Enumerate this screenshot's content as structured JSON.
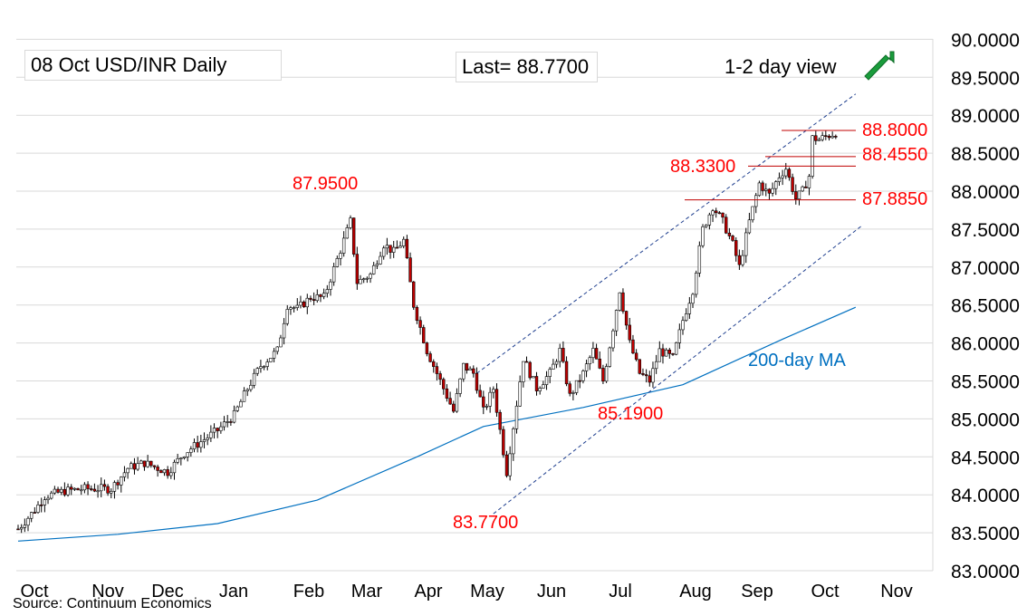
{
  "header": {
    "title": "08 Oct  USD/INR  Daily",
    "last": "Last= 88.7700",
    "view": "1-2 day view"
  },
  "source": "Source: Continuum Economics",
  "colors": {
    "grid": "#d9d9d9",
    "up_candle": "#ffffff",
    "down_candle": "#c00000",
    "wick": "#000000",
    "level_text": "#ff0000",
    "channel": "#1f3f8f",
    "ma": "#0070c0",
    "arrow": "#1a9c3c"
  },
  "icons": {
    "view_arrow": "up-right-arrow-icon"
  },
  "chart_data": {
    "type": "candlestick",
    "x_axis_labels": [
      "Oct",
      "Nov",
      "Dec",
      "Jan",
      "Feb",
      "Mar",
      "Apr",
      "May",
      "Jun",
      "Jul",
      "Aug",
      "Sep",
      "Oct",
      "Nov"
    ],
    "y_ticks": [
      "90.0000",
      "89.5000",
      "89.0000",
      "88.5000",
      "88.0000",
      "87.5000",
      "87.0000",
      "86.5000",
      "86.0000",
      "85.5000",
      "85.0000",
      "84.5000",
      "84.0000",
      "83.5000",
      "83.0000"
    ],
    "ylim": [
      83.0,
      90.0
    ],
    "grid": true,
    "price_path": [
      [
        0,
        83.55
      ],
      [
        5,
        83.8
      ],
      [
        8,
        83.98
      ],
      [
        14,
        84.05
      ],
      [
        20,
        84.08
      ],
      [
        28,
        84.08
      ],
      [
        33,
        84.35
      ],
      [
        38,
        84.42
      ],
      [
        45,
        84.3
      ],
      [
        50,
        84.55
      ],
      [
        55,
        84.7
      ],
      [
        60,
        84.85
      ],
      [
        65,
        85.05
      ],
      [
        69,
        85.4
      ],
      [
        73,
        85.7
      ],
      [
        78,
        85.9
      ],
      [
        81,
        86.5
      ],
      [
        84,
        86.45
      ],
      [
        88,
        86.6
      ],
      [
        92,
        86.6
      ],
      [
        96,
        87.1
      ],
      [
        100,
        87.6
      ],
      [
        102,
        86.8
      ],
      [
        106,
        86.9
      ],
      [
        110,
        87.3
      ],
      [
        113,
        87.2
      ],
      [
        116,
        87.35
      ],
      [
        119,
        86.5
      ],
      [
        123,
        85.9
      ],
      [
        127,
        85.5
      ],
      [
        131,
        85.1
      ],
      [
        134,
        85.7
      ],
      [
        137,
        85.6
      ],
      [
        140,
        85.1
      ],
      [
        143,
        85.4
      ],
      [
        147,
        84.3
      ],
      [
        149,
        84.9
      ],
      [
        152,
        85.8
      ],
      [
        156,
        85.4
      ],
      [
        160,
        85.6
      ],
      [
        163,
        85.9
      ],
      [
        166,
        85.3
      ],
      [
        170,
        85.6
      ],
      [
        173,
        85.9
      ],
      [
        176,
        85.5
      ],
      [
        179,
        86.2
      ],
      [
        181,
        86.7
      ],
      [
        184,
        86.0
      ],
      [
        187,
        85.6
      ],
      [
        190,
        85.5
      ],
      [
        193,
        85.9
      ],
      [
        197,
        85.8
      ],
      [
        200,
        86.3
      ],
      [
        203,
        86.7
      ],
      [
        206,
        87.5
      ],
      [
        209,
        87.8
      ],
      [
        212,
        87.6
      ],
      [
        215,
        87.3
      ],
      [
        217,
        87.0
      ],
      [
        220,
        87.6
      ],
      [
        223,
        88.1
      ],
      [
        226,
        87.95
      ],
      [
        229,
        88.2
      ],
      [
        231,
        88.3
      ],
      [
        234,
        87.9
      ],
      [
        236,
        88.0
      ],
      [
        238,
        88.2
      ],
      [
        239,
        88.7
      ],
      [
        241,
        88.68
      ],
      [
        243,
        88.72
      ],
      [
        246,
        88.77
      ]
    ],
    "key_levels": [
      {
        "label": "88.8000",
        "value": 88.8
      },
      {
        "label": "88.4550",
        "value": 88.455
      },
      {
        "label": "88.3300",
        "value": 88.33
      },
      {
        "label": "87.8850",
        "value": 87.885
      }
    ],
    "extremes": [
      {
        "label": "87.9500",
        "value": 87.95,
        "date": "Feb"
      },
      {
        "label": "83.7700",
        "value": 83.77,
        "date": "May"
      },
      {
        "label": "85.1900",
        "value": 85.19,
        "date": "Jul"
      }
    ],
    "ma_label": "200-day MA",
    "ma_path": [
      [
        0,
        83.39
      ],
      [
        30,
        83.48
      ],
      [
        60,
        83.62
      ],
      [
        90,
        83.93
      ],
      [
        120,
        84.5
      ],
      [
        140,
        84.9
      ],
      [
        170,
        85.15
      ],
      [
        200,
        85.45
      ],
      [
        230,
        86.05
      ],
      [
        252,
        86.47
      ]
    ],
    "channel": {
      "upper": [
        [
          138,
          85.6
        ],
        [
          252,
          89.28
        ]
      ],
      "lower": [
        [
          143,
          83.75
        ],
        [
          254,
          87.55
        ]
      ]
    }
  }
}
